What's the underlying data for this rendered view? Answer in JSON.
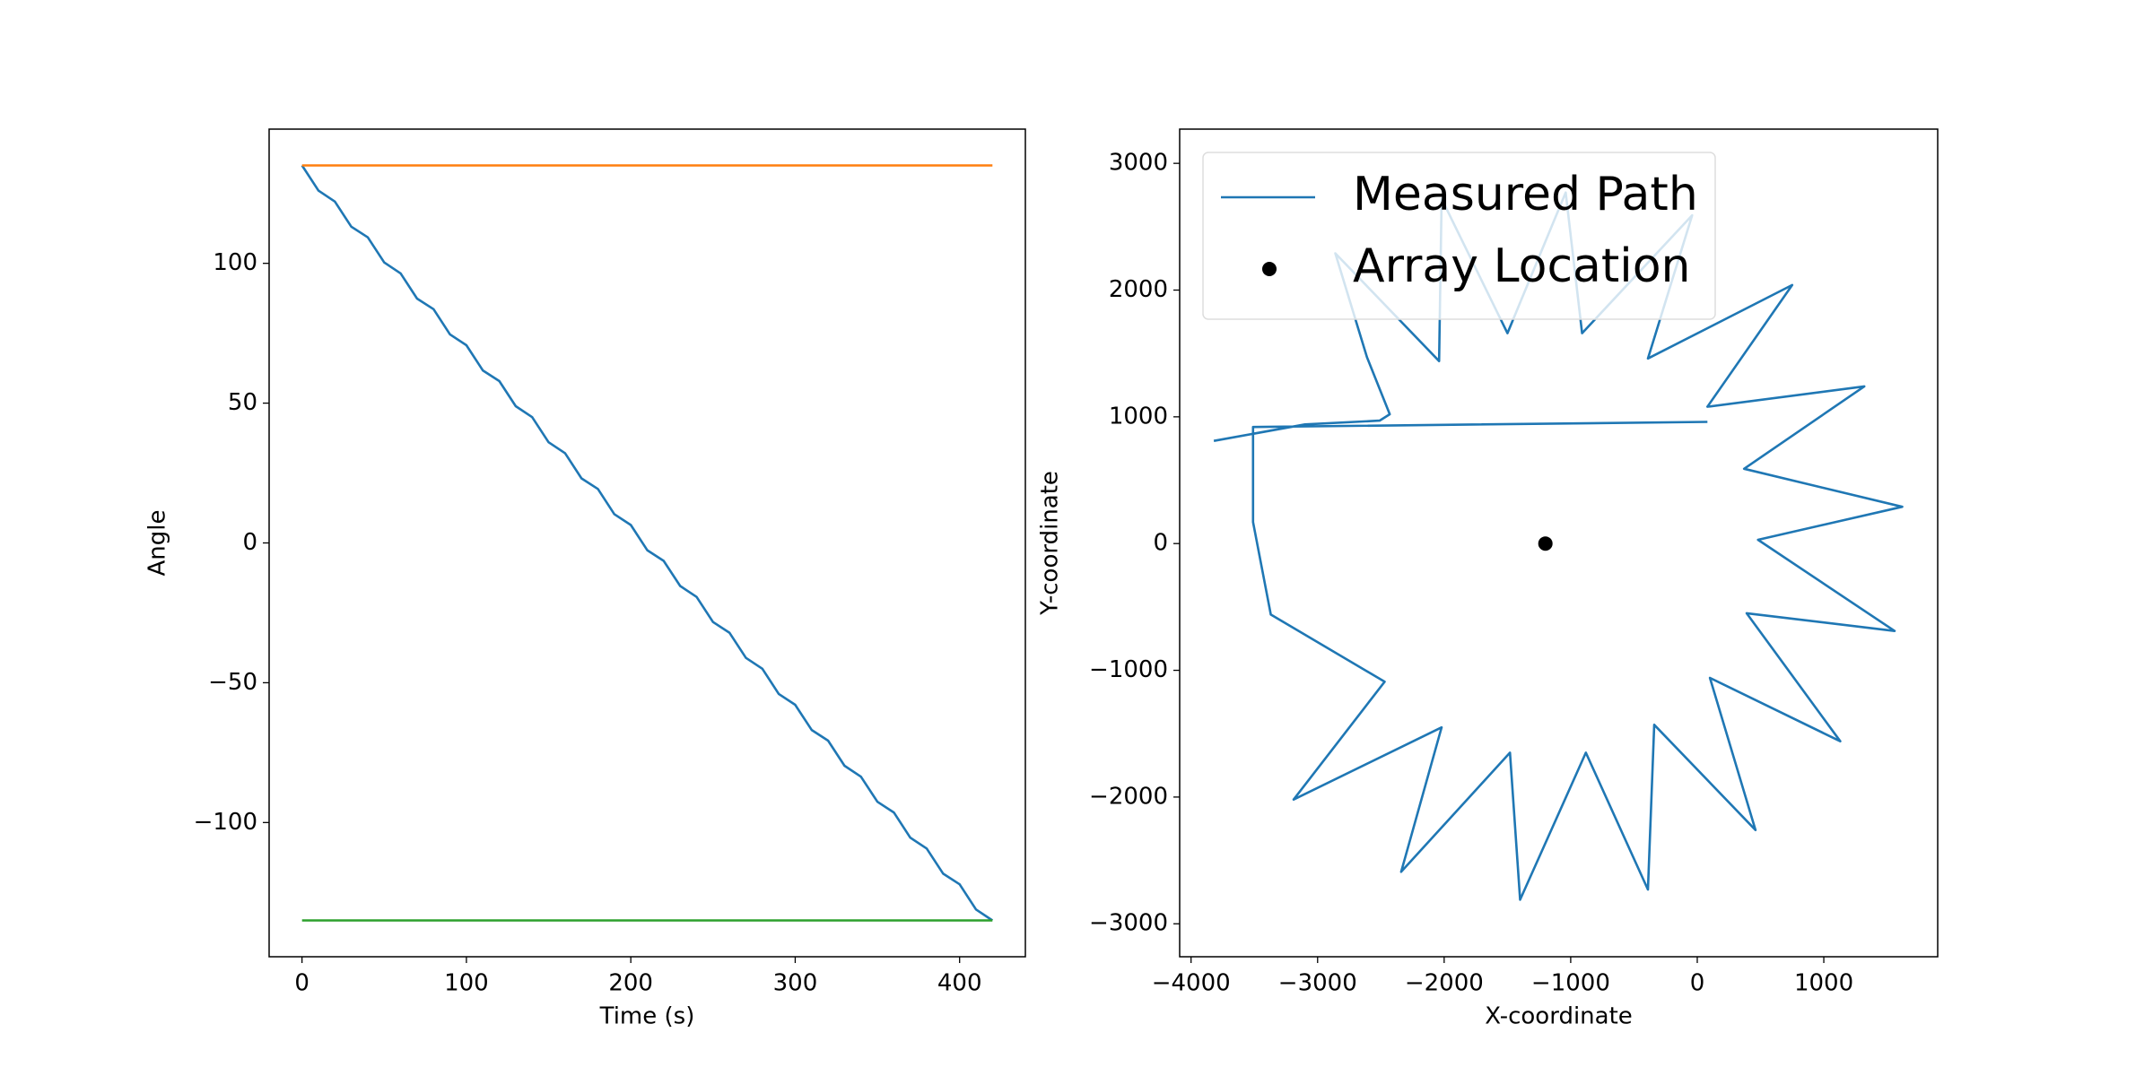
{
  "chart_data": [
    {
      "type": "line",
      "xlabel": "Time (s)",
      "ylabel": "Angle",
      "xlim": [
        -20,
        440
      ],
      "ylim": [
        -148,
        148
      ],
      "xticks": [
        0,
        100,
        200,
        300,
        400
      ],
      "yticks": [
        {
          "value": -100,
          "label": "−100"
        },
        {
          "value": -50,
          "label": "−50"
        },
        0,
        50,
        100
      ],
      "series": [
        {
          "color": "#1f77b4",
          "x": [
            0,
            10,
            20,
            30,
            40,
            50,
            60,
            70,
            80,
            90,
            100,
            110,
            120,
            130,
            140,
            150,
            160,
            170,
            180,
            190,
            200,
            210,
            220,
            230,
            240,
            250,
            260,
            270,
            280,
            290,
            300,
            310,
            320,
            330,
            340,
            350,
            360,
            370,
            380,
            390,
            400,
            410,
            420
          ],
          "values": [
            135,
            126,
            122.1,
            113.1,
            109.3,
            100.3,
            96.4,
            87.4,
            83.6,
            74.6,
            70.7,
            61.7,
            57.9,
            48.9,
            45,
            36,
            32.1,
            23.1,
            19.3,
            10.3,
            6.4,
            -2.6,
            -6.4,
            -15.4,
            -19.3,
            -28.3,
            -32.1,
            -41.1,
            -45,
            -54,
            -57.9,
            -66.9,
            -70.7,
            -79.7,
            -83.6,
            -92.6,
            -96.4,
            -105.4,
            -109.3,
            -118.3,
            -122.1,
            -131.1,
            -135
          ]
        },
        {
          "color": "#ff7f0e",
          "x": [
            0,
            420
          ],
          "values": [
            135,
            135
          ]
        },
        {
          "color": "#2ca02c",
          "x": [
            0,
            420
          ],
          "values": [
            -135,
            -135
          ]
        }
      ]
    },
    {
      "type": "line",
      "xlabel": "X-coordinate",
      "ylabel": "Y-coordinate",
      "xlim": [
        -4090,
        1900
      ],
      "ylim": [
        -3260,
        3270
      ],
      "xticks": [
        {
          "value": -4000,
          "label": "−4000"
        },
        {
          "value": -3000,
          "label": "−3000"
        },
        {
          "value": -2000,
          "label": "−2000"
        },
        {
          "value": -1000,
          "label": "−1000"
        },
        0,
        1000
      ],
      "yticks": [
        {
          "value": -3000,
          "label": "−3000"
        },
        {
          "value": -2000,
          "label": "−2000"
        },
        {
          "value": -1000,
          "label": "−1000"
        },
        0,
        1000,
        2000,
        3000
      ],
      "legend": "upper left",
      "series": [
        {
          "name": "Measured Path",
          "color": "#1f77b4",
          "x": [
            -3820,
            -3100,
            -2510,
            -2430,
            -2610,
            -2860,
            -2040,
            -2020,
            -1500,
            -1040,
            -910,
            -40,
            -390,
            750,
            80,
            1320,
            370,
            1620,
            480,
            1560,
            390,
            1130,
            100,
            460,
            -340,
            -390,
            -880,
            -1400,
            -1480,
            -2340,
            -2020,
            -3190,
            -2470,
            -3370,
            -3510,
            -3510,
            80
          ],
          "values": [
            810,
            940,
            970,
            1020,
            1470,
            2290,
            1440,
            2720,
            1660,
            2770,
            1660,
            2590,
            1460,
            2040,
            1080,
            1240,
            590,
            290,
            30,
            -690,
            -550,
            -1560,
            -1060,
            -2260,
            -1430,
            -2730,
            -1650,
            -2810,
            -1650,
            -2590,
            -1450,
            -2020,
            -1090,
            -560,
            170,
            920,
            960
          ]
        },
        {
          "name": "Array Location",
          "color": "#000000",
          "marker": "dot",
          "x": [
            -1200
          ],
          "values": [
            0
          ]
        }
      ]
    }
  ]
}
